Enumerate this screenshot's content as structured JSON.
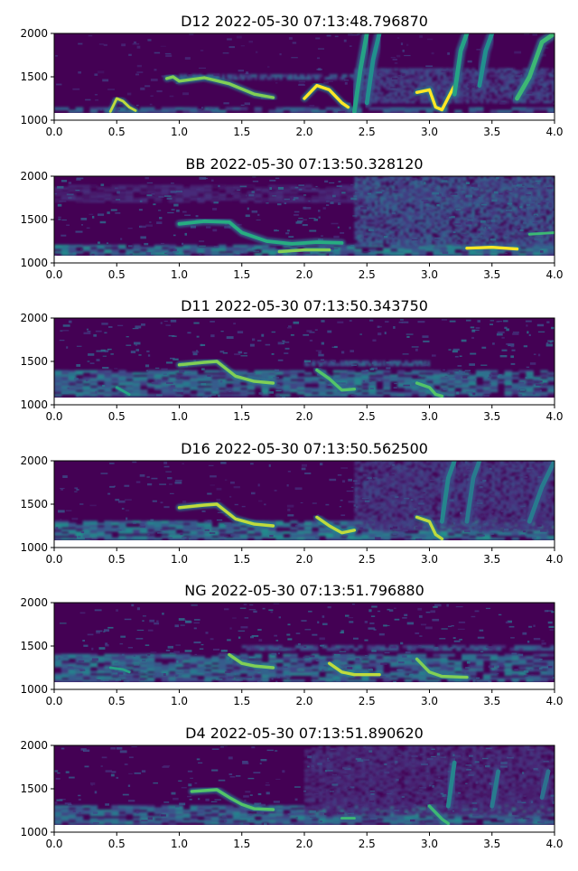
{
  "colors": {
    "bg_dark": "#440154",
    "colormap": "viridis",
    "axis": "#000000"
  },
  "chart_data": [
    {
      "type": "heatmap",
      "title": "D12 2022-05-30 07:13:48.796870",
      "xlim": [
        0,
        4
      ],
      "ylim": [
        1000,
        2000
      ],
      "xticks": [
        "0.0",
        "0.5",
        "1.0",
        "1.5",
        "2.0",
        "2.5",
        "3.0",
        "3.5",
        "4.0"
      ],
      "yticks": [
        "1000",
        "1500",
        "2000"
      ],
      "noise_level": 0.18,
      "tracks": [
        {
          "x": [
            0.45,
            0.5,
            0.55,
            0.6,
            0.65
          ],
          "y": [
            1100,
            1250,
            1220,
            1150,
            1110
          ],
          "w": 30,
          "i": 0.95
        },
        {
          "x": [
            0.9,
            0.95,
            1.0,
            1.2,
            1.4,
            1.6,
            1.75
          ],
          "y": [
            1480,
            1500,
            1450,
            1490,
            1420,
            1300,
            1260
          ],
          "w": 35,
          "i": 0.9
        },
        {
          "x": [
            2.0,
            2.1,
            2.2,
            2.3,
            2.35
          ],
          "y": [
            1250,
            1400,
            1350,
            1200,
            1150
          ],
          "w": 35,
          "i": 1.0
        },
        {
          "x": [
            2.4,
            2.45,
            2.5
          ],
          "y": [
            1100,
            1600,
            2000
          ],
          "w": 50,
          "i": 0.7
        },
        {
          "x": [
            2.5,
            2.55,
            2.6
          ],
          "y": [
            1200,
            1700,
            2000
          ],
          "w": 50,
          "i": 0.6
        },
        {
          "x": [
            2.9,
            3.0,
            3.05,
            3.1,
            3.2
          ],
          "y": [
            1320,
            1350,
            1150,
            1120,
            1400
          ],
          "w": 35,
          "i": 1.0
        },
        {
          "x": [
            3.2,
            3.25,
            3.3
          ],
          "y": [
            1300,
            1800,
            2000
          ],
          "w": 50,
          "i": 0.7
        },
        {
          "x": [
            3.4,
            3.45,
            3.5
          ],
          "y": [
            1400,
            1800,
            2000
          ],
          "w": 50,
          "i": 0.6
        },
        {
          "x": [
            3.7,
            3.8,
            3.9,
            4.0
          ],
          "y": [
            1250,
            1500,
            1900,
            2000
          ],
          "w": 50,
          "i": 0.8
        }
      ],
      "bands": [
        {
          "x0": 0.0,
          "x1": 4.0,
          "y": 1120,
          "h": 60,
          "i": 0.35
        },
        {
          "x0": 1.0,
          "x1": 2.4,
          "y": 1500,
          "h": 60,
          "i": 0.3
        },
        {
          "x0": 2.4,
          "x1": 4.0,
          "y": 1400,
          "h": 400,
          "i": 0.22
        }
      ]
    },
    {
      "type": "heatmap",
      "title": "BB 2022-05-30 07:13:50.328120",
      "xlim": [
        0,
        4
      ],
      "ylim": [
        1000,
        2000
      ],
      "xticks": [
        "0.0",
        "0.5",
        "1.0",
        "1.5",
        "2.0",
        "2.5",
        "3.0",
        "3.5",
        "4.0"
      ],
      "yticks": [
        "1000",
        "1500",
        "2000"
      ],
      "noise_level": 0.35,
      "tracks": [
        {
          "x": [
            1.0,
            1.2,
            1.4,
            1.5,
            1.7,
            1.9,
            2.1,
            2.3
          ],
          "y": [
            1450,
            1480,
            1470,
            1350,
            1250,
            1220,
            1240,
            1230
          ],
          "w": 40,
          "i": 0.75
        },
        {
          "x": [
            1.8,
            2.0,
            2.2
          ],
          "y": [
            1130,
            1150,
            1150
          ],
          "w": 35,
          "i": 0.9
        },
        {
          "x": [
            3.3,
            3.5,
            3.7
          ],
          "y": [
            1170,
            1180,
            1160
          ],
          "w": 35,
          "i": 1.0
        },
        {
          "x": [
            3.8,
            4.0
          ],
          "y": [
            1330,
            1350
          ],
          "w": 30,
          "i": 0.8
        }
      ],
      "bands": [
        {
          "x0": 0.0,
          "x1": 4.0,
          "y": 1150,
          "h": 120,
          "i": 0.45
        },
        {
          "x0": 0.0,
          "x1": 4.0,
          "y": 1800,
          "h": 200,
          "i": 0.12
        },
        {
          "x0": 2.4,
          "x1": 4.0,
          "y": 1600,
          "h": 800,
          "i": 0.3
        }
      ]
    },
    {
      "type": "heatmap",
      "title": "D11 2022-05-30 07:13:50.343750",
      "xlim": [
        0,
        4
      ],
      "ylim": [
        1000,
        2000
      ],
      "xticks": [
        "0.0",
        "0.5",
        "1.0",
        "1.5",
        "2.0",
        "2.5",
        "3.0",
        "3.5",
        "4.0"
      ],
      "yticks": [
        "1000",
        "1500",
        "2000"
      ],
      "noise_level": 0.35,
      "tracks": [
        {
          "x": [
            0.5,
            0.6
          ],
          "y": [
            1200,
            1120
          ],
          "w": 30,
          "i": 0.7
        },
        {
          "x": [
            1.0,
            1.2,
            1.3,
            1.45,
            1.6,
            1.75
          ],
          "y": [
            1460,
            1490,
            1500,
            1330,
            1270,
            1250
          ],
          "w": 35,
          "i": 0.9
        },
        {
          "x": [
            2.1,
            2.2,
            2.3,
            2.4
          ],
          "y": [
            1400,
            1300,
            1170,
            1180
          ],
          "w": 35,
          "i": 0.85
        },
        {
          "x": [
            2.9,
            3.0,
            3.05,
            3.1
          ],
          "y": [
            1250,
            1200,
            1120,
            1100
          ],
          "w": 35,
          "i": 0.85
        }
      ],
      "bands": [
        {
          "x0": 0.0,
          "x1": 4.0,
          "y": 1250,
          "h": 300,
          "i": 0.4
        },
        {
          "x0": 2.0,
          "x1": 3.0,
          "y": 1480,
          "h": 60,
          "i": 0.35
        }
      ]
    },
    {
      "type": "heatmap",
      "title": "D16 2022-05-30 07:13:50.562500",
      "xlim": [
        0,
        4
      ],
      "ylim": [
        1000,
        2000
      ],
      "xticks": [
        "0.0",
        "0.5",
        "1.0",
        "1.5",
        "2.0",
        "2.5",
        "3.0",
        "3.5",
        "4.0"
      ],
      "yticks": [
        "1000",
        "1500",
        "2000"
      ],
      "noise_level": 0.25,
      "tracks": [
        {
          "x": [
            1.0,
            1.2,
            1.3,
            1.45,
            1.6,
            1.75
          ],
          "y": [
            1460,
            1490,
            1500,
            1330,
            1270,
            1250
          ],
          "w": 35,
          "i": 0.95
        },
        {
          "x": [
            2.1,
            2.2,
            2.3,
            2.4
          ],
          "y": [
            1350,
            1250,
            1170,
            1200
          ],
          "w": 35,
          "i": 0.95
        },
        {
          "x": [
            2.9,
            3.0,
            3.05,
            3.1
          ],
          "y": [
            1350,
            1300,
            1150,
            1100
          ],
          "w": 35,
          "i": 0.95
        },
        {
          "x": [
            3.1,
            3.15,
            3.2
          ],
          "y": [
            1300,
            1800,
            2000
          ],
          "w": 50,
          "i": 0.55
        },
        {
          "x": [
            3.3,
            3.35,
            3.4
          ],
          "y": [
            1300,
            1800,
            2000
          ],
          "w": 50,
          "i": 0.5
        },
        {
          "x": [
            3.8,
            3.9,
            4.0
          ],
          "y": [
            1300,
            1700,
            2000
          ],
          "w": 50,
          "i": 0.5
        }
      ],
      "bands": [
        {
          "x0": 0.0,
          "x1": 4.0,
          "y": 1200,
          "h": 220,
          "i": 0.45
        },
        {
          "x0": 2.4,
          "x1": 4.0,
          "y": 1600,
          "h": 800,
          "i": 0.2
        }
      ]
    },
    {
      "type": "heatmap",
      "title": "NG 2022-05-30 07:13:51.796880",
      "xlim": [
        0,
        4
      ],
      "ylim": [
        1000,
        2000
      ],
      "xticks": [
        "0.0",
        "0.5",
        "1.0",
        "1.5",
        "2.0",
        "2.5",
        "3.0",
        "3.5",
        "4.0"
      ],
      "yticks": [
        "1000",
        "1500",
        "2000"
      ],
      "noise_level": 0.35,
      "tracks": [
        {
          "x": [
            0.45,
            0.55,
            0.6
          ],
          "y": [
            1250,
            1230,
            1200
          ],
          "w": 30,
          "i": 0.7
        },
        {
          "x": [
            1.4,
            1.5,
            1.6,
            1.75
          ],
          "y": [
            1400,
            1300,
            1270,
            1250
          ],
          "w": 35,
          "i": 0.9
        },
        {
          "x": [
            2.2,
            2.3,
            2.4,
            2.6
          ],
          "y": [
            1300,
            1200,
            1170,
            1170
          ],
          "w": 35,
          "i": 0.95
        },
        {
          "x": [
            2.9,
            3.0,
            3.1,
            3.3
          ],
          "y": [
            1350,
            1200,
            1150,
            1140
          ],
          "w": 35,
          "i": 0.9
        }
      ],
      "bands": [
        {
          "x0": 0.0,
          "x1": 4.0,
          "y": 1250,
          "h": 320,
          "i": 0.4
        },
        {
          "x0": 1.5,
          "x1": 4.0,
          "y": 1480,
          "h": 60,
          "i": 0.3
        }
      ]
    },
    {
      "type": "heatmap",
      "title": "D4 2022-05-30 07:13:51.890620",
      "xlim": [
        0,
        4
      ],
      "ylim": [
        1000,
        2000
      ],
      "xticks": [
        "0.0",
        "0.5",
        "1.0",
        "1.5",
        "2.0",
        "2.5",
        "3.0",
        "3.5",
        "4.0"
      ],
      "yticks": [
        "1000",
        "1500",
        "2000"
      ],
      "noise_level": 0.3,
      "tracks": [
        {
          "x": [
            1.1,
            1.3,
            1.4,
            1.5,
            1.6,
            1.75
          ],
          "y": [
            1470,
            1490,
            1400,
            1320,
            1270,
            1260
          ],
          "w": 35,
          "i": 0.85
        },
        {
          "x": [
            2.3,
            2.4
          ],
          "y": [
            1160,
            1160
          ],
          "w": 30,
          "i": 0.8
        },
        {
          "x": [
            3.0,
            3.1,
            3.15
          ],
          "y": [
            1300,
            1150,
            1100
          ],
          "w": 35,
          "i": 0.8
        },
        {
          "x": [
            3.15,
            3.2
          ],
          "y": [
            1300,
            1800
          ],
          "w": 50,
          "i": 0.55
        },
        {
          "x": [
            3.5,
            3.55
          ],
          "y": [
            1300,
            1700
          ],
          "w": 50,
          "i": 0.5
        },
        {
          "x": [
            3.9,
            3.95
          ],
          "y": [
            1400,
            1700
          ],
          "w": 50,
          "i": 0.45
        }
      ],
      "bands": [
        {
          "x0": 0.0,
          "x1": 4.0,
          "y": 1200,
          "h": 220,
          "i": 0.4
        },
        {
          "x0": 2.0,
          "x1": 4.0,
          "y": 1600,
          "h": 800,
          "i": 0.15
        }
      ]
    }
  ]
}
